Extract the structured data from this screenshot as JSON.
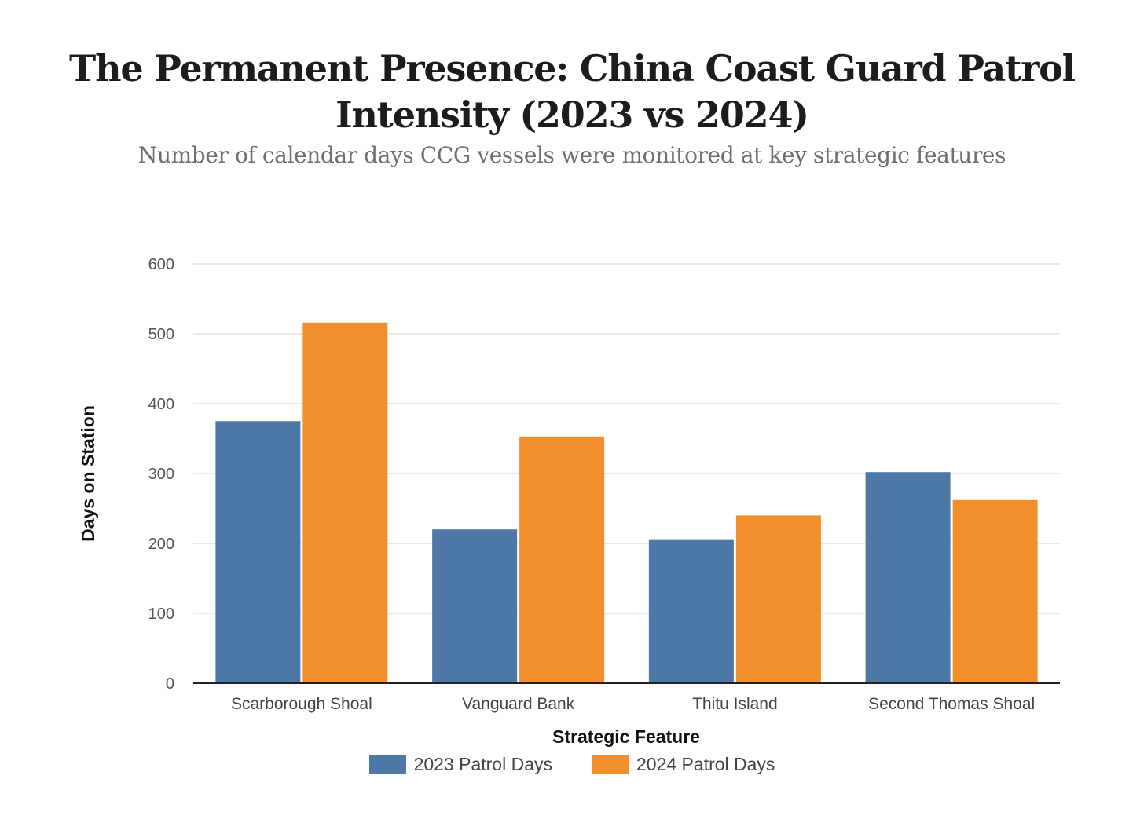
{
  "chart_data": {
    "type": "bar",
    "title": "The Permanent Presence: China Coast Guard Patrol Intensity (2023 vs 2024)",
    "subtitle": "Number of calendar days CCG vessels were monitored at key strategic features",
    "xlabel": "Strategic Feature",
    "ylabel": "Days on Station",
    "ylim": [
      0,
      600
    ],
    "yticks": [
      "0",
      "100",
      "200",
      "300",
      "400",
      "500",
      "600"
    ],
    "categories": [
      "Scarborough Shoal",
      "Vanguard Bank",
      "Thitu Island",
      "Second Thomas Shoal"
    ],
    "series": [
      {
        "name": "2023 Patrol Days",
        "values": [
          375,
          220,
          206,
          302
        ],
        "color": "#4e79a7"
      },
      {
        "name": "2024 Patrol Days",
        "values": [
          516,
          353,
          240,
          262
        ],
        "color": "#f28e2b"
      }
    ],
    "grid": true,
    "legend_position": "bottom"
  }
}
